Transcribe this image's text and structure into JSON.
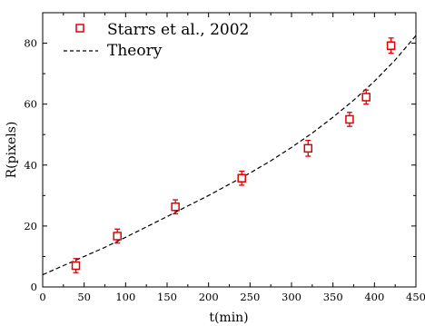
{
  "chart_data": {
    "type": "scatter",
    "xlabel": "t(min)",
    "ylabel": "R(pixels)",
    "xlim": [
      0,
      450
    ],
    "ylim": [
      0,
      90
    ],
    "xticks": [
      0,
      50,
      100,
      150,
      200,
      250,
      300,
      350,
      400,
      450
    ],
    "yticks": [
      0,
      20,
      40,
      60,
      80
    ],
    "grid": false,
    "legend_position": "top-left",
    "series": [
      {
        "name": "Starrs et al., 2002",
        "kind": "points",
        "marker": "open-square",
        "color": "#e00000",
        "x": [
          40,
          90,
          160,
          240,
          320,
          370,
          390,
          420
        ],
        "y": [
          7,
          16.7,
          26.3,
          35.7,
          45.5,
          55,
          62.3,
          79.2
        ],
        "yerr": [
          2.3,
          2.3,
          2.3,
          2.3,
          2.6,
          2.3,
          2.3,
          2.5
        ]
      },
      {
        "name": "Theory",
        "kind": "line",
        "style": "dashed",
        "color": "#000000",
        "x": [
          0,
          25,
          50,
          75,
          100,
          125,
          150,
          175,
          200,
          225,
          250,
          275,
          300,
          325,
          350,
          375,
          400,
          425,
          450
        ],
        "y": [
          4.0,
          7.0,
          10.0,
          13.0,
          16.3,
          19.7,
          23.1,
          26.6,
          30.0,
          33.7,
          37.4,
          41.4,
          45.8,
          50.5,
          55.7,
          61.3,
          67.5,
          74.5,
          82.5
        ]
      }
    ]
  }
}
